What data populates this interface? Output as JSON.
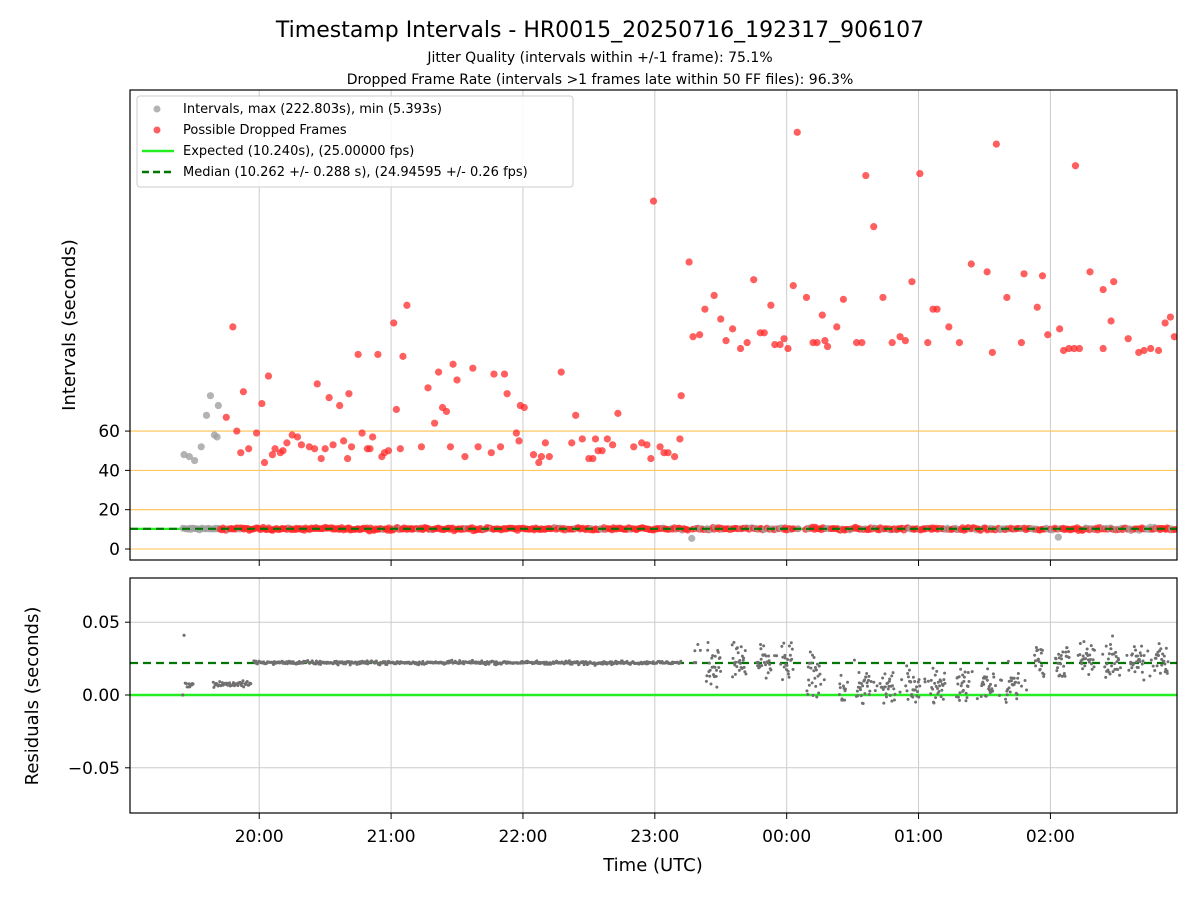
{
  "chart_data": [
    {
      "type": "scatter",
      "panel": "top",
      "title": "Timestamp Intervals - HR0015_20250716_192317_906107",
      "subtitle_1": "Jitter Quality (intervals within +/-1 frame): 75.1%",
      "subtitle_2": "Dropped Frame Rate (intervals >1 frames late within 50 FF files): 96.3%",
      "ylabel": "Intervals (seconds)",
      "y_ticks": [
        "0",
        "20",
        "40",
        "60"
      ],
      "y_tick_values": [
        0,
        20,
        40,
        60
      ],
      "x_ticks": [
        "20:00",
        "21:00",
        "22:00",
        "23:00",
        "00:00",
        "01:00",
        "02:00"
      ],
      "x_tick_hours": [
        20,
        21,
        22,
        23,
        24,
        25,
        26
      ],
      "xlim_hours": [
        19.02,
        26.96
      ],
      "grid": "vertical lines at hour ticks; orange horizontal lines at 0, 20, 40, 60",
      "legend_position": "top-left",
      "legend": [
        "Intervals, max (222.803s), min (5.393s)",
        "Possible Dropped Frames",
        "Expected (10.240s), (25.00000 fps)",
        "Median (10.262 +/- 0.288 s), (24.94595 +/- 0.26 fps)"
      ],
      "colors": {
        "intervals": "#a0a0a0",
        "dropped": "#ff2a2a",
        "expected": "#22ee22",
        "median": "#007700",
        "hline": "#ffc04d"
      },
      "expected_interval": 10.24,
      "median_interval": 10.262,
      "max_interval": 222.803,
      "min_interval": 5.393,
      "note_baseline": "dense band of points near 10.24 s, mostly red from 19:40 onward",
      "gray_points": [
        {
          "t": 19.43,
          "y": 48
        },
        {
          "t": 19.47,
          "y": 47
        },
        {
          "t": 19.51,
          "y": 45
        },
        {
          "t": 19.56,
          "y": 52
        },
        {
          "t": 19.6,
          "y": 68
        },
        {
          "t": 19.63,
          "y": 78
        },
        {
          "t": 19.66,
          "y": 58
        },
        {
          "t": 19.68,
          "y": 57
        },
        {
          "t": 19.69,
          "y": 73
        },
        {
          "t": 23.28,
          "y": 5.4
        },
        {
          "t": 26.06,
          "y": 6
        }
      ],
      "dropped_points": [
        {
          "t": 19.75,
          "y": 67
        },
        {
          "t": 19.8,
          "y": 113
        },
        {
          "t": 19.83,
          "y": 60
        },
        {
          "t": 19.86,
          "y": 49
        },
        {
          "t": 19.88,
          "y": 80
        },
        {
          "t": 19.92,
          "y": 51
        },
        {
          "t": 19.98,
          "y": 59
        },
        {
          "t": 20.02,
          "y": 74
        },
        {
          "t": 20.04,
          "y": 44
        },
        {
          "t": 20.07,
          "y": 88
        },
        {
          "t": 20.1,
          "y": 48
        },
        {
          "t": 20.12,
          "y": 51
        },
        {
          "t": 20.16,
          "y": 49
        },
        {
          "t": 20.18,
          "y": 50
        },
        {
          "t": 20.21,
          "y": 54
        },
        {
          "t": 20.25,
          "y": 58
        },
        {
          "t": 20.29,
          "y": 57
        },
        {
          "t": 20.32,
          "y": 53
        },
        {
          "t": 20.38,
          "y": 52
        },
        {
          "t": 20.42,
          "y": 51
        },
        {
          "t": 20.44,
          "y": 84
        },
        {
          "t": 20.47,
          "y": 46
        },
        {
          "t": 20.5,
          "y": 51
        },
        {
          "t": 20.53,
          "y": 77
        },
        {
          "t": 20.56,
          "y": 53
        },
        {
          "t": 20.61,
          "y": 73
        },
        {
          "t": 20.64,
          "y": 55
        },
        {
          "t": 20.67,
          "y": 46
        },
        {
          "t": 20.68,
          "y": 79
        },
        {
          "t": 20.7,
          "y": 52
        },
        {
          "t": 20.75,
          "y": 99
        },
        {
          "t": 20.78,
          "y": 59
        },
        {
          "t": 20.82,
          "y": 51
        },
        {
          "t": 20.84,
          "y": 51
        },
        {
          "t": 20.86,
          "y": 57
        },
        {
          "t": 20.9,
          "y": 99
        },
        {
          "t": 20.93,
          "y": 47
        },
        {
          "t": 20.95,
          "y": 49
        },
        {
          "t": 20.98,
          "y": 50
        },
        {
          "t": 21.02,
          "y": 115
        },
        {
          "t": 21.04,
          "y": 71
        },
        {
          "t": 21.07,
          "y": 51
        },
        {
          "t": 21.09,
          "y": 98
        },
        {
          "t": 21.12,
          "y": 124
        },
        {
          "t": 21.23,
          "y": 52
        },
        {
          "t": 21.28,
          "y": 82
        },
        {
          "t": 21.33,
          "y": 64
        },
        {
          "t": 21.36,
          "y": 90
        },
        {
          "t": 21.39,
          "y": 72
        },
        {
          "t": 21.42,
          "y": 70
        },
        {
          "t": 21.45,
          "y": 52
        },
        {
          "t": 21.47,
          "y": 94
        },
        {
          "t": 21.5,
          "y": 86
        },
        {
          "t": 21.56,
          "y": 47
        },
        {
          "t": 21.62,
          "y": 92
        },
        {
          "t": 21.66,
          "y": 52
        },
        {
          "t": 21.76,
          "y": 49
        },
        {
          "t": 21.78,
          "y": 89
        },
        {
          "t": 21.83,
          "y": 52
        },
        {
          "t": 21.86,
          "y": 89
        },
        {
          "t": 21.88,
          "y": 79
        },
        {
          "t": 21.95,
          "y": 59
        },
        {
          "t": 21.97,
          "y": 55
        },
        {
          "t": 21.98,
          "y": 73
        },
        {
          "t": 22.01,
          "y": 72
        },
        {
          "t": 22.08,
          "y": 48
        },
        {
          "t": 22.12,
          "y": 44
        },
        {
          "t": 22.14,
          "y": 47
        },
        {
          "t": 22.17,
          "y": 54
        },
        {
          "t": 22.2,
          "y": 47
        },
        {
          "t": 22.29,
          "y": 90
        },
        {
          "t": 22.37,
          "y": 54
        },
        {
          "t": 22.4,
          "y": 68
        },
        {
          "t": 22.45,
          "y": 56
        },
        {
          "t": 22.5,
          "y": 46
        },
        {
          "t": 22.53,
          "y": 46
        },
        {
          "t": 22.55,
          "y": 56
        },
        {
          "t": 22.57,
          "y": 50
        },
        {
          "t": 22.6,
          "y": 50
        },
        {
          "t": 22.64,
          "y": 56
        },
        {
          "t": 22.68,
          "y": 53
        },
        {
          "t": 22.72,
          "y": 69
        },
        {
          "t": 22.84,
          "y": 52
        },
        {
          "t": 22.9,
          "y": 54
        },
        {
          "t": 22.94,
          "y": 53
        },
        {
          "t": 22.97,
          "y": 46
        },
        {
          "t": 22.99,
          "y": 177
        },
        {
          "t": 23.04,
          "y": 52
        },
        {
          "t": 23.07,
          "y": 49
        },
        {
          "t": 23.1,
          "y": 49
        },
        {
          "t": 23.15,
          "y": 47
        },
        {
          "t": 23.19,
          "y": 56
        },
        {
          "t": 23.2,
          "y": 78
        },
        {
          "t": 23.26,
          "y": 146
        },
        {
          "t": 23.29,
          "y": 108
        },
        {
          "t": 23.34,
          "y": 109
        },
        {
          "t": 23.38,
          "y": 122
        },
        {
          "t": 23.45,
          "y": 129
        },
        {
          "t": 23.5,
          "y": 117
        },
        {
          "t": 23.54,
          "y": 106
        },
        {
          "t": 23.59,
          "y": 112
        },
        {
          "t": 23.65,
          "y": 102
        },
        {
          "t": 23.7,
          "y": 105
        },
        {
          "t": 23.75,
          "y": 137
        },
        {
          "t": 23.8,
          "y": 110
        },
        {
          "t": 23.83,
          "y": 110
        },
        {
          "t": 23.88,
          "y": 124
        },
        {
          "t": 23.91,
          "y": 104
        },
        {
          "t": 23.95,
          "y": 104
        },
        {
          "t": 23.98,
          "y": 107
        },
        {
          "t": 24.01,
          "y": 102
        },
        {
          "t": 24.05,
          "y": 134
        },
        {
          "t": 24.08,
          "y": 212
        },
        {
          "t": 24.15,
          "y": 128
        },
        {
          "t": 24.2,
          "y": 105
        },
        {
          "t": 24.23,
          "y": 105
        },
        {
          "t": 24.27,
          "y": 119
        },
        {
          "t": 24.29,
          "y": 106
        },
        {
          "t": 24.31,
          "y": 103
        },
        {
          "t": 24.38,
          "y": 113
        },
        {
          "t": 24.43,
          "y": 127
        },
        {
          "t": 24.53,
          "y": 105
        },
        {
          "t": 24.57,
          "y": 105
        },
        {
          "t": 24.6,
          "y": 190
        },
        {
          "t": 24.66,
          "y": 164
        },
        {
          "t": 24.73,
          "y": 128
        },
        {
          "t": 24.8,
          "y": 105
        },
        {
          "t": 24.86,
          "y": 108
        },
        {
          "t": 24.9,
          "y": 106
        },
        {
          "t": 24.95,
          "y": 136
        },
        {
          "t": 25.01,
          "y": 191
        },
        {
          "t": 25.07,
          "y": 105
        },
        {
          "t": 25.11,
          "y": 122
        },
        {
          "t": 25.14,
          "y": 122
        },
        {
          "t": 25.23,
          "y": 113
        },
        {
          "t": 25.31,
          "y": 105
        },
        {
          "t": 25.4,
          "y": 145
        },
        {
          "t": 25.52,
          "y": 141
        },
        {
          "t": 25.56,
          "y": 100
        },
        {
          "t": 25.59,
          "y": 206
        },
        {
          "t": 25.67,
          "y": 128
        },
        {
          "t": 25.78,
          "y": 105
        },
        {
          "t": 25.8,
          "y": 140
        },
        {
          "t": 25.9,
          "y": 123
        },
        {
          "t": 25.94,
          "y": 139
        },
        {
          "t": 25.98,
          "y": 109
        },
        {
          "t": 26.07,
          "y": 112
        },
        {
          "t": 26.1,
          "y": 101
        },
        {
          "t": 26.14,
          "y": 102
        },
        {
          "t": 26.18,
          "y": 102
        },
        {
          "t": 26.19,
          "y": 195
        },
        {
          "t": 26.22,
          "y": 102
        },
        {
          "t": 26.3,
          "y": 141
        },
        {
          "t": 26.4,
          "y": 102
        },
        {
          "t": 26.4,
          "y": 132
        },
        {
          "t": 26.46,
          "y": 116
        },
        {
          "t": 26.48,
          "y": 136
        },
        {
          "t": 26.59,
          "y": 107
        },
        {
          "t": 26.67,
          "y": 100
        },
        {
          "t": 26.71,
          "y": 101
        },
        {
          "t": 26.76,
          "y": 102
        },
        {
          "t": 26.82,
          "y": 101
        },
        {
          "t": 26.87,
          "y": 115
        },
        {
          "t": 26.91,
          "y": 118
        },
        {
          "t": 26.94,
          "y": 108
        }
      ]
    },
    {
      "type": "scatter",
      "panel": "bottom",
      "xlabel": "Time (UTC)",
      "ylabel": "Residuals (seconds)",
      "y_ticks": [
        "−0.05",
        "0.00",
        "0.05"
      ],
      "y_tick_values": [
        -0.05,
        0.0,
        0.05
      ],
      "ylim": [
        -0.08,
        0.08
      ],
      "x_ticks": [
        "20:00",
        "21:00",
        "22:00",
        "23:00",
        "00:00",
        "01:00",
        "02:00"
      ],
      "x_tick_hours": [
        20,
        21,
        22,
        23,
        24,
        25,
        26
      ],
      "grid": "both",
      "zero_line": 0.0,
      "median_line": 0.022,
      "colors": {
        "points": "#707070",
        "zero": "#22ee22",
        "median": "#007700",
        "grid": "#cccccc"
      },
      "outliers": [
        {
          "t": 19.43,
          "y": 0.041
        },
        {
          "t": 19.42,
          "y": 0.0
        }
      ],
      "clusters": [
        {
          "t_start": 19.44,
          "t_end": 19.5,
          "y_center": 0.0075,
          "spread": 0.001
        },
        {
          "t_start": 19.65,
          "t_end": 19.94,
          "y_center": 0.0075,
          "spread": 0.001
        },
        {
          "t_start": 19.96,
          "t_end": 23.2,
          "y_center": 0.0222,
          "spread": 0.0006
        },
        {
          "t_start": 23.3,
          "t_end": 24.05,
          "y_center": 0.022,
          "spread": 0.007
        },
        {
          "t_start": 24.15,
          "t_end": 24.3,
          "y_center": 0.012,
          "spread": 0.008
        },
        {
          "t_start": 24.4,
          "t_end": 25.85,
          "y_center": 0.006,
          "spread": 0.006
        },
        {
          "t_start": 25.88,
          "t_end": 26.96,
          "y_center": 0.024,
          "spread": 0.006
        }
      ]
    }
  ]
}
